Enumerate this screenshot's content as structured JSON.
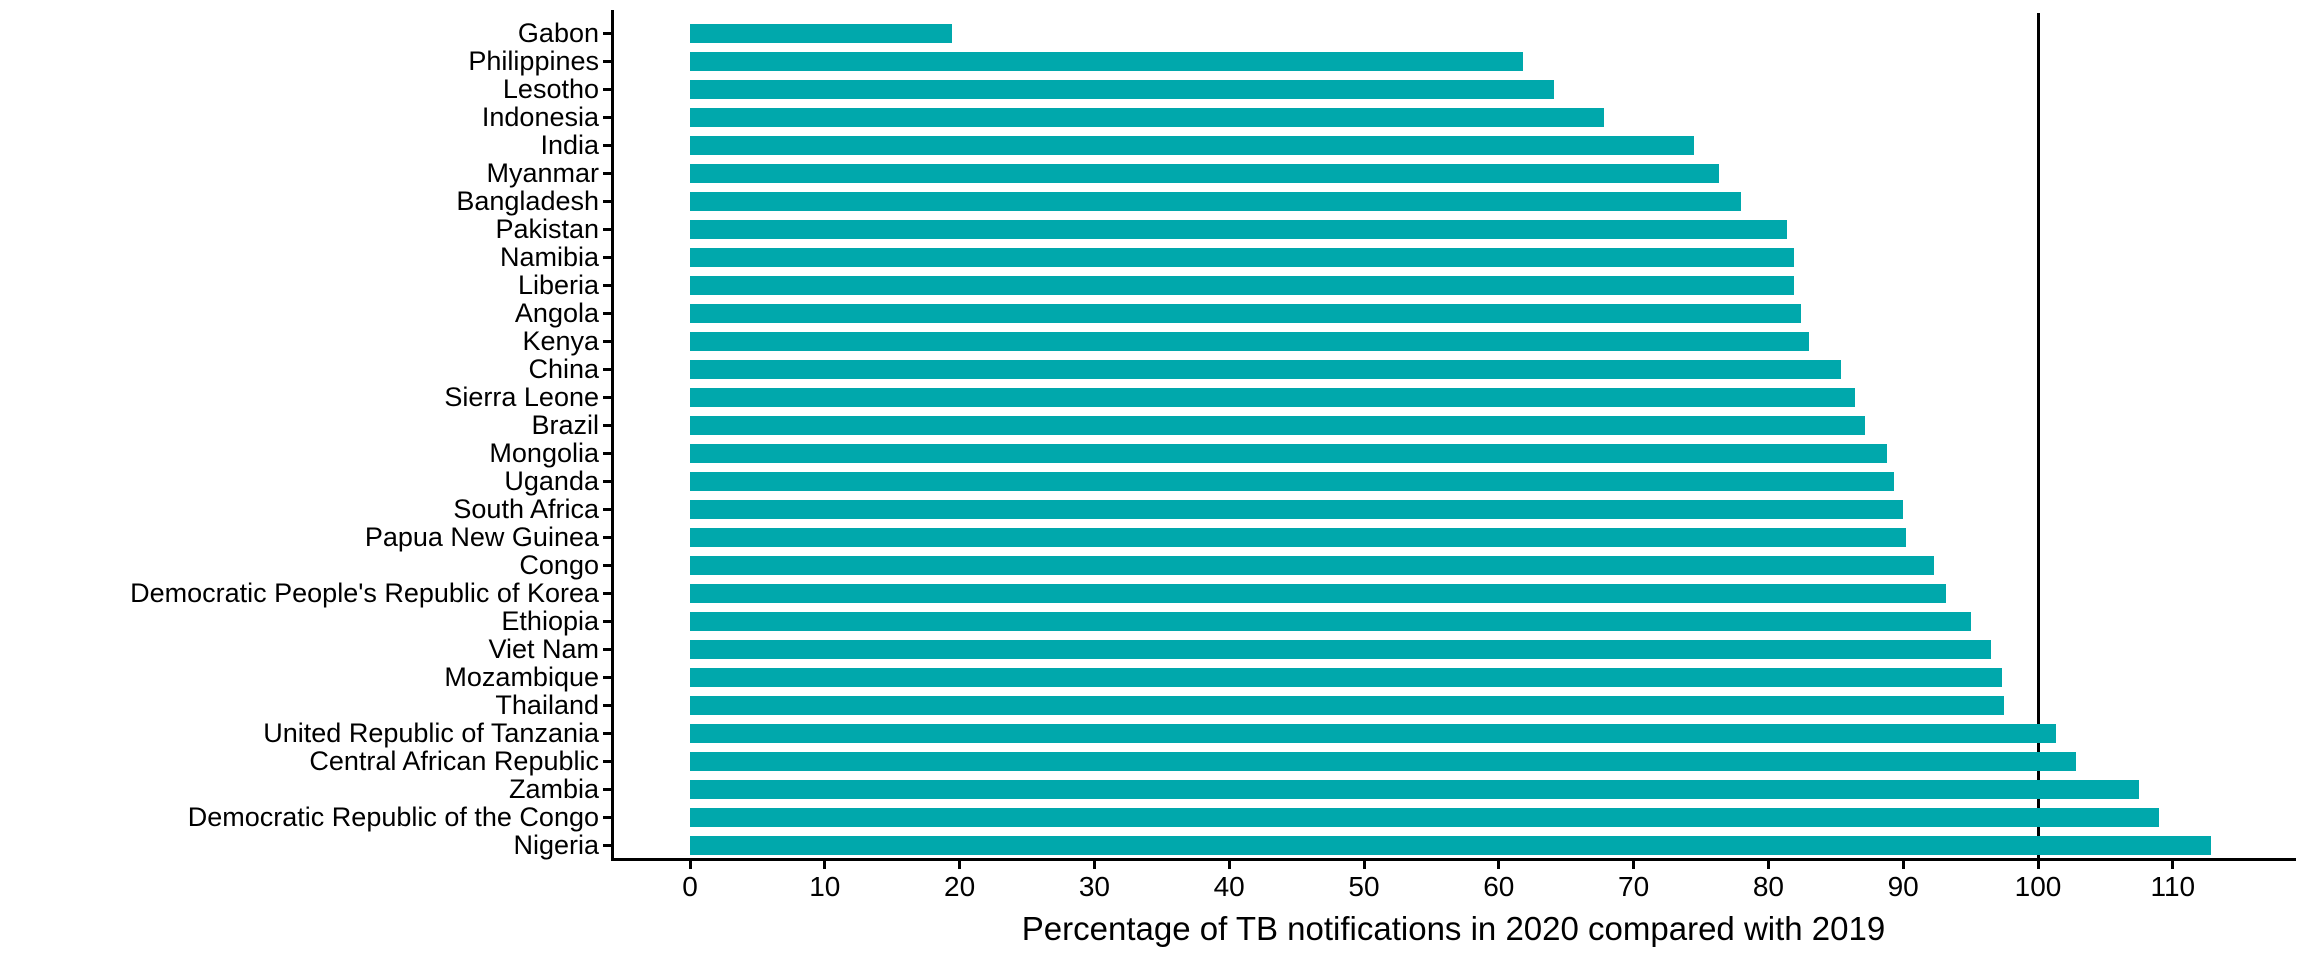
{
  "figure": {
    "background_color": "#ffffff",
    "bar_color": "#00A8AC",
    "axis_color": "#000000",
    "text_color": "#000000"
  },
  "chart_data": {
    "type": "bar",
    "orientation": "horizontal",
    "title": "",
    "xlabel": "Percentage of TB notifications in 2020 compared with 2019",
    "ylabel": "",
    "grid": "off",
    "legend": "none",
    "xlim": [
      0,
      117
    ],
    "x_ticks": [
      0,
      10,
      20,
      30,
      40,
      50,
      60,
      70,
      80,
      90,
      100,
      110
    ],
    "reference_line_x": 100,
    "categories": [
      "Gabon",
      "Philippines",
      "Lesotho",
      "Indonesia",
      "India",
      "Myanmar",
      "Bangladesh",
      "Pakistan",
      "Namibia",
      "Liberia",
      "Angola",
      "Kenya",
      "China",
      "Sierra Leone",
      "Brazil",
      "Mongolia",
      "Uganda",
      "South Africa",
      "Papua New Guinea",
      "Congo",
      "Democratic People's Republic of Korea",
      "Ethiopia",
      "Viet Nam",
      "Mozambique",
      "Thailand",
      "United Republic of Tanzania",
      "Central African Republic",
      "Zambia",
      "Democratic Republic of the Congo",
      "Nigeria"
    ],
    "values": [
      19.4,
      61.8,
      64.1,
      67.8,
      74.5,
      76.3,
      78.0,
      81.4,
      81.9,
      81.9,
      82.4,
      83.0,
      85.4,
      86.4,
      87.2,
      88.8,
      89.3,
      90.0,
      90.2,
      92.3,
      93.2,
      95.0,
      96.5,
      97.3,
      97.5,
      101.3,
      102.8,
      107.5,
      109.0,
      112.8
    ]
  }
}
